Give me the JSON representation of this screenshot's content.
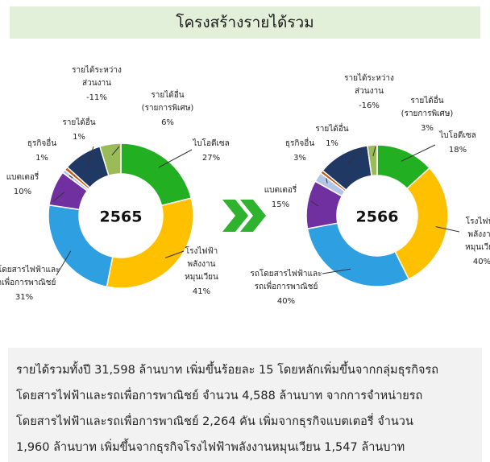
{
  "title": "โครงสร้างรายได้รวม",
  "chart_data": [
    {
      "type": "pie",
      "donut": true,
      "center_label": "2565",
      "categories": [
        "ไบโอดีเซล",
        "โรงไฟฟ้า\nพลังงาน\nหมุนเวียน",
        "รถโดยสารไฟฟ้าและ\nรถเพื่อการพาณิชย์",
        "แบตเตอรี่",
        "ธุรกิจอื่น",
        "รายได้อื่น",
        "รายได้ระหว่าง\nส่วนงาน",
        "รายได้อื่น\n(รายการพิเศษ)"
      ],
      "values": [
        27,
        41,
        31,
        10,
        1,
        1,
        -11,
        6
      ],
      "value_labels": [
        "27%",
        "41%",
        "31%",
        "10%",
        "1%",
        "1%",
        "-11%",
        "6%"
      ],
      "colors": [
        "#22b022",
        "#ffc000",
        "#2e9fe0",
        "#7030a0",
        "#b4c6e7",
        "#c55a11",
        "#203864",
        "#9bbb59"
      ]
    },
    {
      "type": "pie",
      "donut": true,
      "center_label": "2566",
      "categories": [
        "ไบโอดีเซล",
        "โรงไฟฟ้า\nพลังงาน\nหมุนเวียน",
        "รถโดยสารไฟฟ้าและ\nรถเพื่อการพาณิชย์",
        "แบตเตอรี่",
        "ธุรกิจอื่น",
        "รายได้อื่น",
        "รายได้ระหว่าง\nส่วนงาน",
        "รายได้อื่น\n(รายการพิเศษ)"
      ],
      "values": [
        18,
        40,
        40,
        15,
        3,
        1,
        -16,
        3
      ],
      "value_labels": [
        "18%",
        "40%",
        "40%",
        "15%",
        "3%",
        "1%",
        "-16%",
        "3%"
      ],
      "colors": [
        "#22b022",
        "#ffc000",
        "#2e9fe0",
        "#7030a0",
        "#b4c6e7",
        "#c55a11",
        "#203864",
        "#9bbb59"
      ]
    }
  ],
  "paragraph": [
    "รายได้รวมทั้งปี 31,598 ล้านบาท เพิ่มขึ้นร้อยละ 15 โดยหลักเพิ่มขึ้นจากกลุ่มธุรกิจรถ",
    "โดยสารไฟฟ้าและรถเพื่อการพาณิชย์ จำนวน 4,588 ล้านบาท จากการจำหน่ายรถ",
    "โดยสารไฟฟ้าและรถเพื่อการพาณิชย์  2,264 คัน เพิ่มจากธุรกิจแบตเตอรี่ จำนวน",
    "1,960 ล้านบาท เพิ่มขึ้นจากธุรกิจโรงไฟฟ้าพลังงานหมุนเวียน 1,547 ล้านบาท"
  ]
}
